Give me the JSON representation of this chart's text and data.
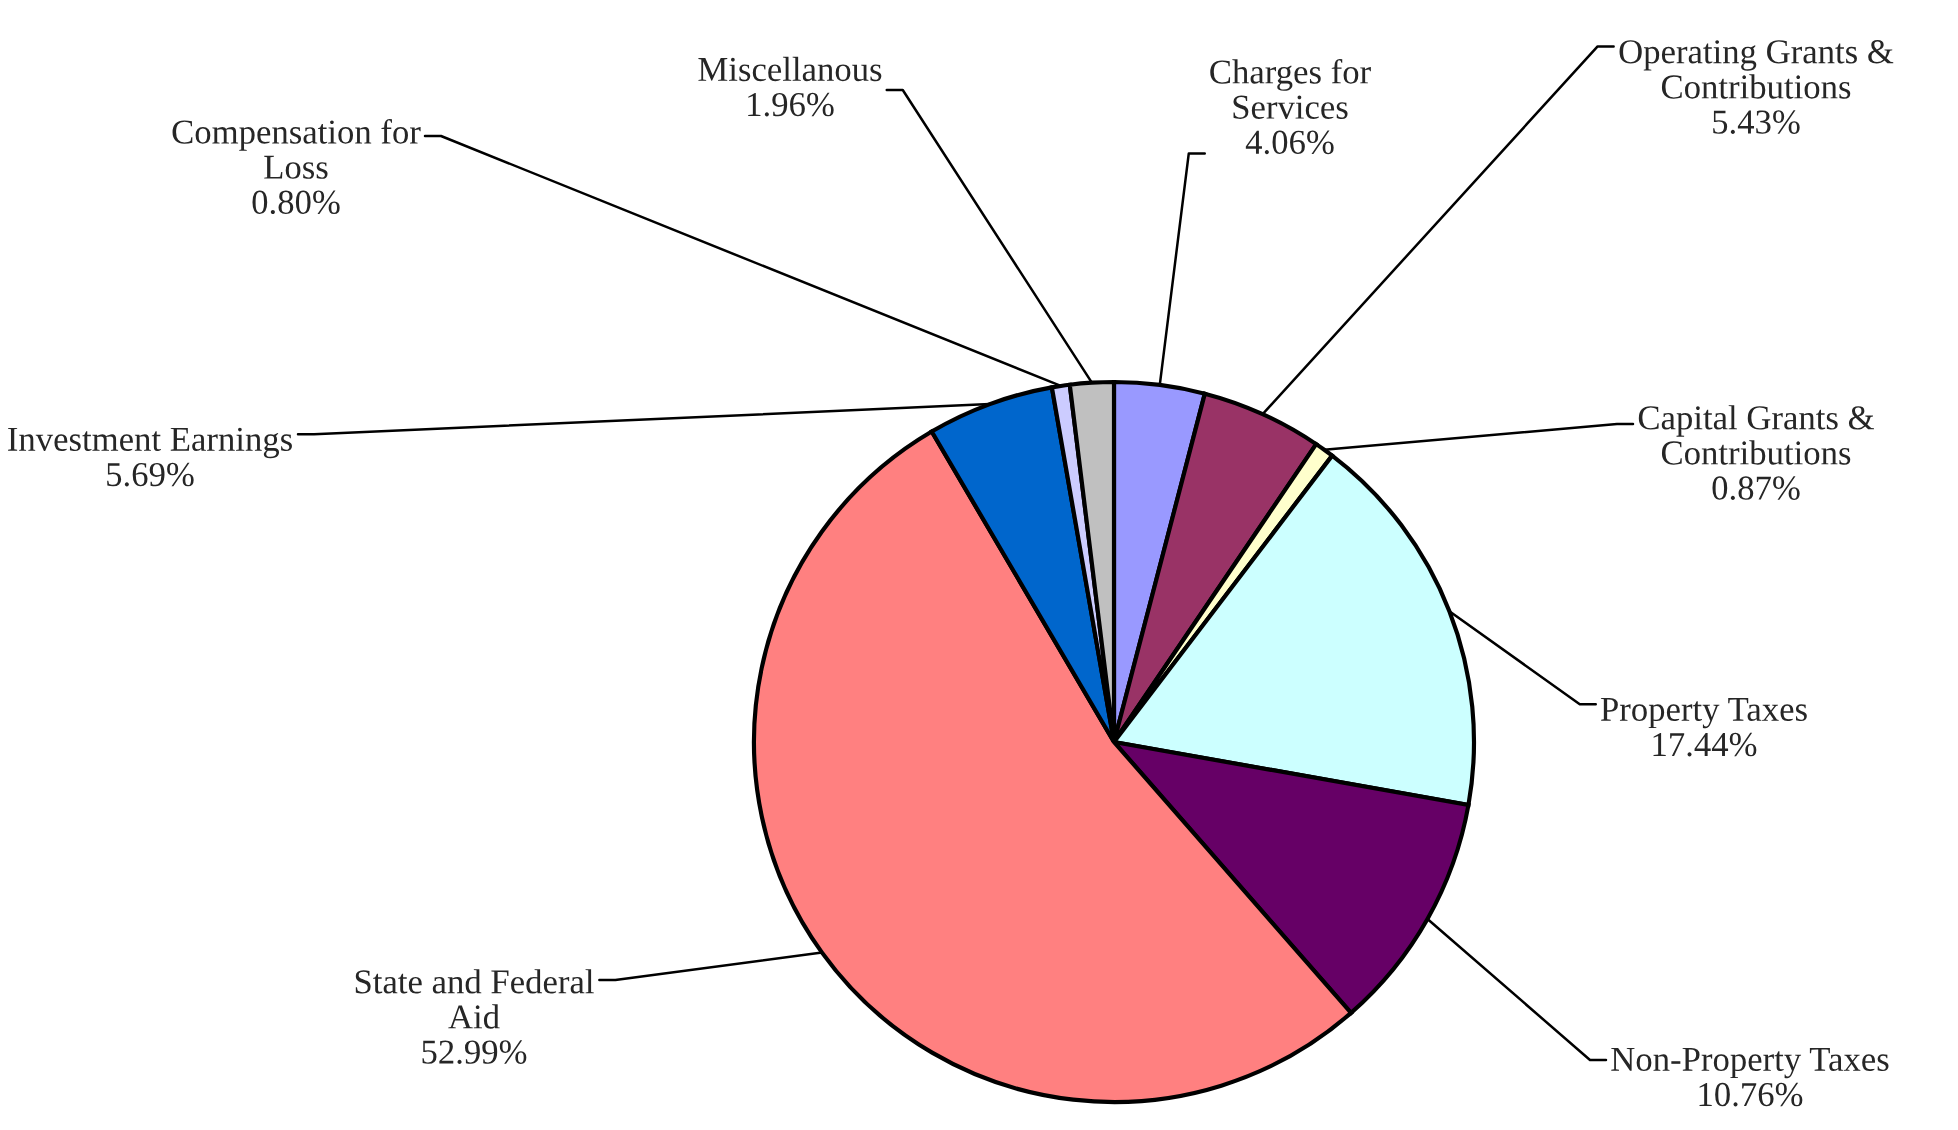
{
  "chart_data": {
    "type": "pie",
    "categories": [
      "Charges for\nServices",
      "Operating Grants &\nContributions",
      "Capital Grants &\nContributions",
      "Property Taxes",
      "Non-Property Taxes",
      "State and Federal\nAid",
      "Investment Earnings",
      "Compensation for\nLoss",
      "Miscellanous"
    ],
    "values": [
      4.06,
      5.43,
      0.87,
      17.44,
      10.76,
      52.99,
      5.69,
      0.8,
      1.96
    ],
    "value_labels": [
      "4.06%",
      "5.43%",
      "0.87%",
      "17.44%",
      "10.76%",
      "52.99%",
      "5.69%",
      "0.80%",
      "1.96%"
    ],
    "colors": [
      "#9999ff",
      "#993366",
      "#ffffcc",
      "#ccffff",
      "#660066",
      "#ff8080",
      "#0066cc",
      "#ccccff",
      "#c0c0c0"
    ]
  }
}
